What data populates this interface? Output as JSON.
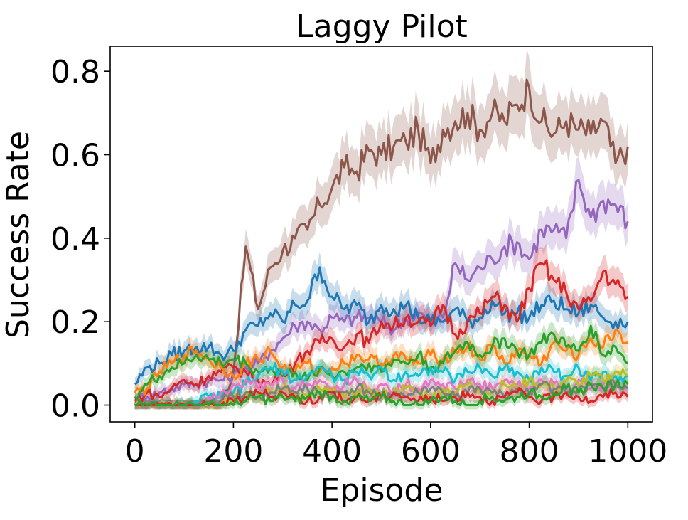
{
  "chart_data": {
    "type": "line",
    "title": "Laggy Pilot",
    "xlabel": "Episode",
    "ylabel": "Success Rate",
    "xlim": [
      -50,
      1050
    ],
    "ylim": [
      -0.04,
      0.86
    ],
    "x_ticks": [
      {
        "value": 0,
        "label": "0"
      },
      {
        "value": 200,
        "label": "200"
      },
      {
        "value": 400,
        "label": "400"
      },
      {
        "value": 600,
        "label": "600"
      },
      {
        "value": 800,
        "label": "800"
      },
      {
        "value": 1000,
        "label": "1000"
      }
    ],
    "y_ticks": [
      {
        "value": 0.0,
        "label": "0.0"
      },
      {
        "value": 0.2,
        "label": "0.2"
      },
      {
        "value": 0.4,
        "label": "0.4"
      },
      {
        "value": 0.6,
        "label": "0.6"
      },
      {
        "value": 0.8,
        "label": "0.8"
      }
    ],
    "grid": false,
    "legend": "none",
    "shaded_band": "mean ± spread",
    "x": [
      0,
      25,
      50,
      75,
      100,
      125,
      150,
      175,
      200,
      225,
      250,
      275,
      300,
      325,
      350,
      375,
      400,
      425,
      450,
      475,
      500,
      525,
      550,
      575,
      600,
      625,
      650,
      675,
      700,
      725,
      750,
      775,
      800,
      825,
      850,
      875,
      900,
      925,
      950,
      975,
      1000
    ],
    "series": [
      {
        "color": "#8c564b",
        "values": [
          0.0,
          0.0,
          0.0,
          0.0,
          0.0,
          0.0,
          0.0,
          0.0,
          0.08,
          0.38,
          0.23,
          0.33,
          0.37,
          0.4,
          0.42,
          0.48,
          0.52,
          0.57,
          0.56,
          0.61,
          0.6,
          0.62,
          0.63,
          0.66,
          0.58,
          0.66,
          0.68,
          0.7,
          0.66,
          0.7,
          0.68,
          0.72,
          0.76,
          0.68,
          0.65,
          0.68,
          0.66,
          0.65,
          0.68,
          0.58,
          0.62
        ]
      },
      {
        "color": "#9467bd",
        "values": [
          0.02,
          0.02,
          0.03,
          0.04,
          0.05,
          0.05,
          0.06,
          0.06,
          0.07,
          0.09,
          0.1,
          0.13,
          0.16,
          0.19,
          0.2,
          0.18,
          0.21,
          0.2,
          0.21,
          0.21,
          0.2,
          0.18,
          0.21,
          0.22,
          0.2,
          0.21,
          0.34,
          0.3,
          0.33,
          0.35,
          0.38,
          0.39,
          0.35,
          0.42,
          0.42,
          0.4,
          0.54,
          0.45,
          0.49,
          0.48,
          0.44
        ]
      },
      {
        "color": "#1f77b4",
        "values": [
          0.05,
          0.09,
          0.1,
          0.12,
          0.13,
          0.14,
          0.14,
          0.12,
          0.13,
          0.18,
          0.19,
          0.22,
          0.2,
          0.24,
          0.25,
          0.33,
          0.26,
          0.23,
          0.24,
          0.2,
          0.24,
          0.23,
          0.24,
          0.21,
          0.2,
          0.2,
          0.23,
          0.2,
          0.21,
          0.25,
          0.22,
          0.22,
          0.21,
          0.24,
          0.25,
          0.23,
          0.22,
          0.24,
          0.21,
          0.2,
          0.2
        ]
      },
      {
        "color": "#d62728",
        "values": [
          0.01,
          0.03,
          0.02,
          0.04,
          0.06,
          0.05,
          0.07,
          0.08,
          0.09,
          0.08,
          0.06,
          0.05,
          0.08,
          0.1,
          0.13,
          0.15,
          0.16,
          0.14,
          0.17,
          0.15,
          0.2,
          0.19,
          0.21,
          0.2,
          0.19,
          0.24,
          0.17,
          0.2,
          0.22,
          0.26,
          0.24,
          0.2,
          0.28,
          0.34,
          0.3,
          0.27,
          0.23,
          0.25,
          0.32,
          0.29,
          0.26
        ]
      },
      {
        "color": "#ff7f0e",
        "values": [
          0.03,
          0.04,
          0.08,
          0.1,
          0.12,
          0.13,
          0.11,
          0.09,
          0.07,
          0.1,
          0.11,
          0.13,
          0.09,
          0.08,
          0.1,
          0.08,
          0.09,
          0.1,
          0.12,
          0.11,
          0.1,
          0.12,
          0.11,
          0.1,
          0.12,
          0.11,
          0.13,
          0.14,
          0.11,
          0.14,
          0.1,
          0.13,
          0.12,
          0.1,
          0.15,
          0.13,
          0.12,
          0.16,
          0.14,
          0.18,
          0.15
        ]
      },
      {
        "color": "#2ca02c",
        "values": [
          0.02,
          0.05,
          0.07,
          0.09,
          0.1,
          0.12,
          0.11,
          0.1,
          0.11,
          0.1,
          0.08,
          0.09,
          0.07,
          0.08,
          0.06,
          0.09,
          0.07,
          0.08,
          0.09,
          0.1,
          0.08,
          0.11,
          0.1,
          0.12,
          0.09,
          0.1,
          0.13,
          0.15,
          0.12,
          0.14,
          0.16,
          0.13,
          0.12,
          0.15,
          0.17,
          0.14,
          0.13,
          0.19,
          0.12,
          0.14,
          0.1
        ]
      },
      {
        "color": "#17becf",
        "values": [
          0.0,
          0.0,
          0.0,
          0.0,
          0.0,
          0.01,
          0.02,
          0.02,
          0.03,
          0.05,
          0.07,
          0.09,
          0.08,
          0.06,
          0.07,
          0.09,
          0.07,
          0.06,
          0.08,
          0.07,
          0.09,
          0.06,
          0.08,
          0.07,
          0.09,
          0.08,
          0.06,
          0.08,
          0.09,
          0.07,
          0.09,
          0.08,
          0.06,
          0.09,
          0.08,
          0.07,
          0.09,
          0.06,
          0.08,
          0.07,
          0.07
        ]
      },
      {
        "color": "#e377c2",
        "values": [
          0.0,
          0.0,
          0.0,
          0.0,
          0.0,
          0.0,
          0.02,
          0.03,
          0.05,
          0.06,
          0.04,
          0.05,
          0.06,
          0.04,
          0.05,
          0.06,
          0.04,
          0.05,
          0.06,
          0.04,
          0.05,
          0.03,
          0.05,
          0.04,
          0.06,
          0.05,
          0.04,
          0.06,
          0.05,
          0.04,
          0.06,
          0.05,
          0.04,
          0.06,
          0.05,
          0.04,
          0.06,
          0.04,
          0.05,
          0.04,
          0.04
        ]
      },
      {
        "color": "#bcbd22",
        "values": [
          0.0,
          0.0,
          0.0,
          0.0,
          0.0,
          0.0,
          0.0,
          0.01,
          0.02,
          0.03,
          0.02,
          0.03,
          0.04,
          0.03,
          0.02,
          0.04,
          0.03,
          0.02,
          0.03,
          0.04,
          0.02,
          0.03,
          0.04,
          0.03,
          0.02,
          0.04,
          0.03,
          0.05,
          0.04,
          0.03,
          0.05,
          0.04,
          0.06,
          0.05,
          0.04,
          0.06,
          0.05,
          0.07,
          0.06,
          0.08,
          0.07
        ]
      },
      {
        "color": "#7f7f7f",
        "values": [
          0.0,
          0.0,
          0.0,
          0.0,
          0.0,
          0.0,
          0.01,
          0.01,
          0.02,
          0.03,
          0.02,
          0.03,
          0.04,
          0.03,
          0.04,
          0.03,
          0.02,
          0.03,
          0.04,
          0.03,
          0.02,
          0.03,
          0.02,
          0.03,
          0.04,
          0.03,
          0.02,
          0.03,
          0.04,
          0.03,
          0.02,
          0.04,
          0.03,
          0.05,
          0.04,
          0.03,
          0.04,
          0.05,
          0.04,
          0.05,
          0.04
        ]
      },
      {
        "color": "#d62728",
        "values": [
          0.0,
          0.0,
          0.0,
          0.0,
          0.0,
          0.0,
          0.0,
          0.0,
          0.01,
          0.02,
          0.03,
          0.02,
          0.03,
          0.02,
          0.01,
          0.02,
          0.03,
          0.01,
          0.02,
          0.01,
          0.02,
          0.03,
          0.02,
          0.01,
          0.02,
          0.01,
          0.02,
          0.03,
          0.02,
          0.01,
          0.02,
          0.03,
          0.02,
          0.01,
          0.02,
          0.03,
          0.02,
          0.01,
          0.02,
          0.03,
          0.02
        ]
      },
      {
        "color": "#2ca02c",
        "values": [
          0.0,
          0.0,
          0.0,
          0.0,
          0.0,
          0.0,
          0.0,
          0.0,
          0.0,
          0.01,
          0.02,
          0.01,
          0.02,
          0.01,
          0.02,
          0.03,
          0.02,
          0.01,
          0.02,
          0.01,
          0.02,
          0.01,
          0.0,
          0.0,
          0.01,
          0.02,
          0.01,
          0.0,
          0.01,
          0.02,
          0.01,
          0.02,
          0.03,
          0.02,
          0.03,
          0.04,
          0.03,
          0.05,
          0.04,
          0.05,
          0.05
        ]
      }
    ]
  }
}
